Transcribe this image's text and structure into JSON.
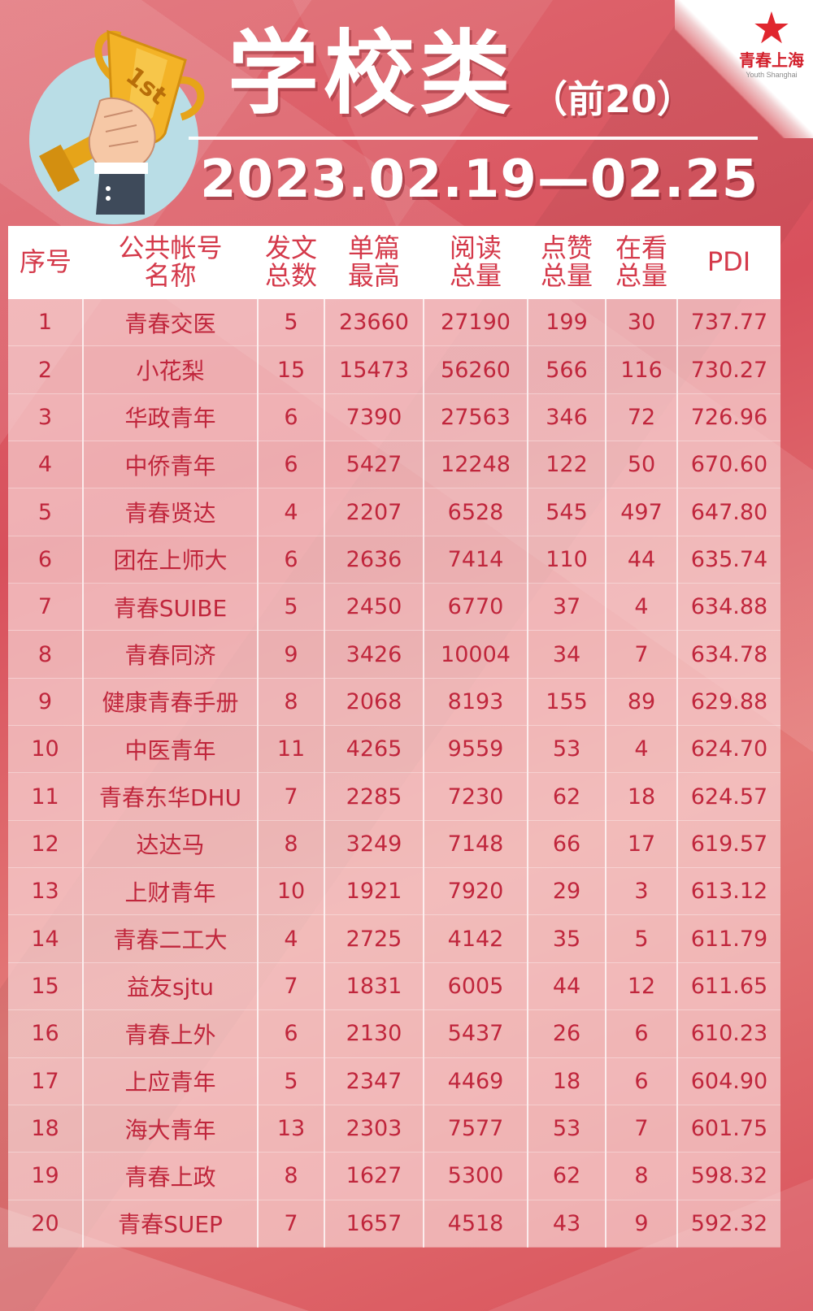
{
  "header": {
    "title": "学校类",
    "subtitle": "（前20）",
    "date_range": "2023.02.19—02.25",
    "trophy_badge": "1st"
  },
  "logo": {
    "name_cn": "青春上海",
    "name_en": "Youth Shanghai",
    "icon": "red-star-icon"
  },
  "colors": {
    "background": "#d9555e",
    "header_text": "#d4394a",
    "cell_text": "#c0263c"
  },
  "table": {
    "headers": [
      [
        "序号"
      ],
      [
        "公共帐号",
        "名称"
      ],
      [
        "发文",
        "总数"
      ],
      [
        "单篇",
        "最高"
      ],
      [
        "阅读",
        "总量"
      ],
      [
        "点赞",
        "总量"
      ],
      [
        "在看",
        "总量"
      ],
      [
        "PDI"
      ]
    ],
    "rows": [
      [
        "1",
        "青春交医",
        "5",
        "23660",
        "27190",
        "199",
        "30",
        "737.77"
      ],
      [
        "2",
        "小花梨",
        "15",
        "15473",
        "56260",
        "566",
        "116",
        "730.27"
      ],
      [
        "3",
        "华政青年",
        "6",
        "7390",
        "27563",
        "346",
        "72",
        "726.96"
      ],
      [
        "4",
        "中侨青年",
        "6",
        "5427",
        "12248",
        "122",
        "50",
        "670.60"
      ],
      [
        "5",
        "青春贤达",
        "4",
        "2207",
        "6528",
        "545",
        "497",
        "647.80"
      ],
      [
        "6",
        "团在上师大",
        "6",
        "2636",
        "7414",
        "110",
        "44",
        "635.74"
      ],
      [
        "7",
        "青春SUIBE",
        "5",
        "2450",
        "6770",
        "37",
        "4",
        "634.88"
      ],
      [
        "8",
        "青春同济",
        "9",
        "3426",
        "10004",
        "34",
        "7",
        "634.78"
      ],
      [
        "9",
        "健康青春手册",
        "8",
        "2068",
        "8193",
        "155",
        "89",
        "629.88"
      ],
      [
        "10",
        "中医青年",
        "11",
        "4265",
        "9559",
        "53",
        "4",
        "624.70"
      ],
      [
        "11",
        "青春东华DHU",
        "7",
        "2285",
        "7230",
        "62",
        "18",
        "624.57"
      ],
      [
        "12",
        "达达马",
        "8",
        "3249",
        "7148",
        "66",
        "17",
        "619.57"
      ],
      [
        "13",
        "上财青年",
        "10",
        "1921",
        "7920",
        "29",
        "3",
        "613.12"
      ],
      [
        "14",
        "青春二工大",
        "4",
        "2725",
        "4142",
        "35",
        "5",
        "611.79"
      ],
      [
        "15",
        "益友sjtu",
        "7",
        "1831",
        "6005",
        "44",
        "12",
        "611.65"
      ],
      [
        "16",
        "青春上外",
        "6",
        "2130",
        "5437",
        "26",
        "6",
        "610.23"
      ],
      [
        "17",
        "上应青年",
        "5",
        "2347",
        "4469",
        "18",
        "6",
        "604.90"
      ],
      [
        "18",
        "海大青年",
        "13",
        "2303",
        "7577",
        "53",
        "7",
        "601.75"
      ],
      [
        "19",
        "青春上政",
        "8",
        "1627",
        "5300",
        "62",
        "8",
        "598.32"
      ],
      [
        "20",
        "青春SUEP",
        "7",
        "1657",
        "4518",
        "43",
        "9",
        "592.32"
      ]
    ]
  }
}
